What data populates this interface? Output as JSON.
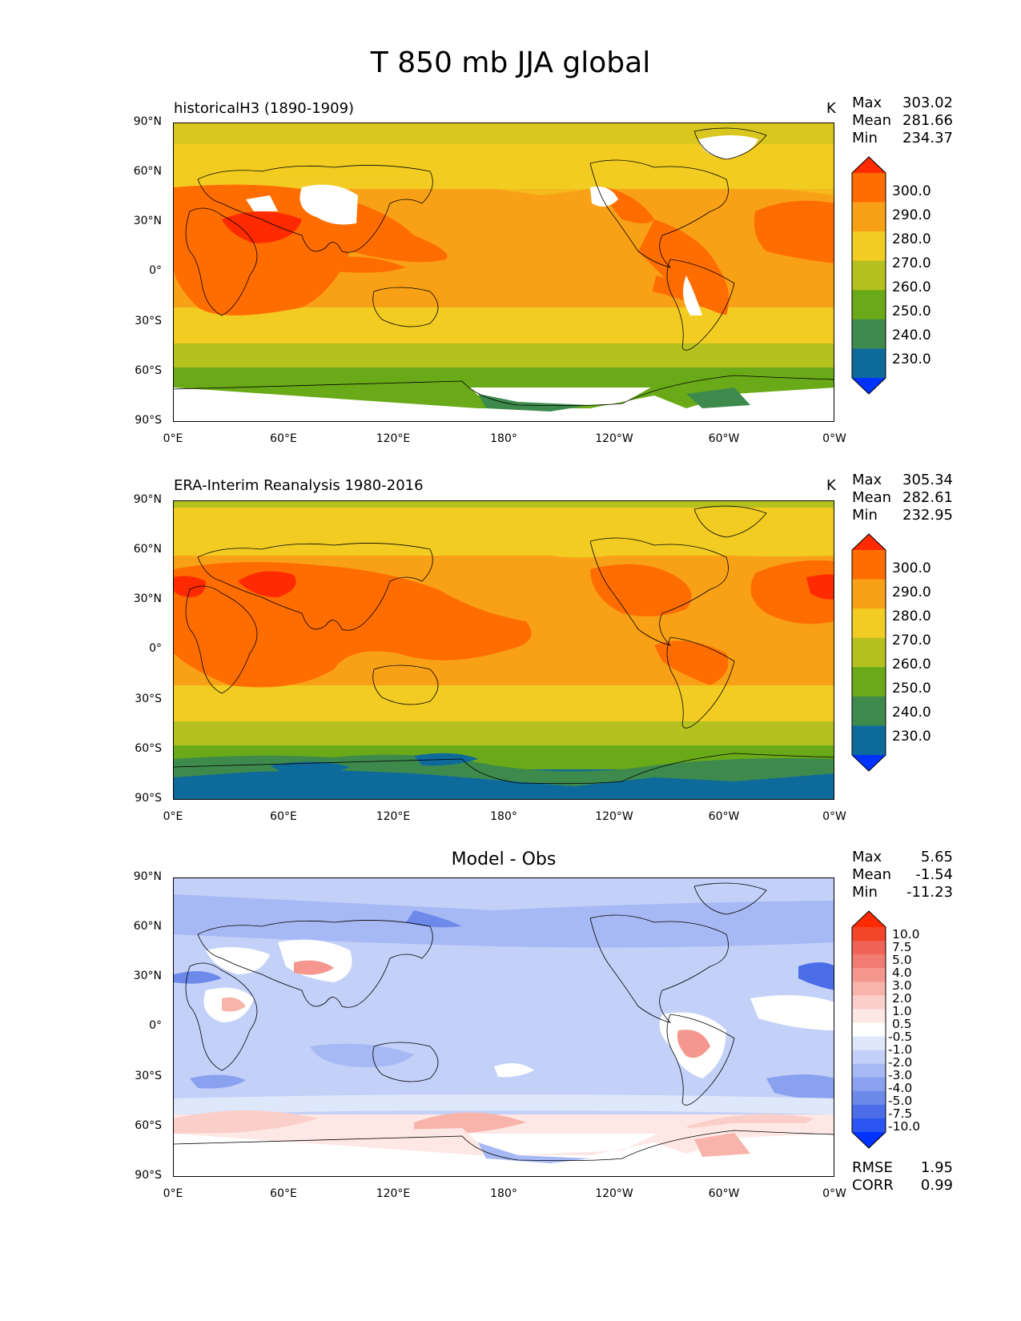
{
  "figure": {
    "title": "T 850 mb JJA global"
  },
  "axes": {
    "lat_labels": [
      "90°N",
      "60°N",
      "30°N",
      "0°",
      "30°S",
      "60°S",
      "90°S"
    ],
    "lon_labels": [
      "0°E",
      "60°E",
      "120°E",
      "180°",
      "120°W",
      "60°W",
      "0°W"
    ]
  },
  "panels": [
    {
      "title": "historicalH3 (1890-1909)",
      "units": "K",
      "stats": {
        "max_label": "Max",
        "max": "303.02",
        "mean_label": "Mean",
        "mean": "281.66",
        "min_label": "Min",
        "min": "234.37"
      },
      "colorbar": {
        "labels": [
          "300.0",
          "290.0",
          "280.0",
          "270.0",
          "260.0",
          "250.0",
          "240.0",
          "230.0"
        ],
        "colors": [
          "#ff2a00",
          "#ff6d00",
          "#f9a116",
          "#f2cc22",
          "#b5c11f",
          "#6aaa18",
          "#3d8a4c",
          "#0f6a9c",
          "#0033ff"
        ]
      }
    },
    {
      "title": "ERA-Interim Reanalysis 1980-2016",
      "units": "K",
      "stats": {
        "max_label": "Max",
        "max": "305.34",
        "mean_label": "Mean",
        "mean": "282.61",
        "min_label": "Min",
        "min": "232.95"
      },
      "colorbar": {
        "labels": [
          "300.0",
          "290.0",
          "280.0",
          "270.0",
          "260.0",
          "250.0",
          "240.0",
          "230.0"
        ],
        "colors": [
          "#ff2a00",
          "#ff6d00",
          "#f9a116",
          "#f2cc22",
          "#b5c11f",
          "#6aaa18",
          "#3d8a4c",
          "#0f6a9c",
          "#0033ff"
        ]
      }
    },
    {
      "title": "Model - Obs",
      "units": "",
      "stats": {
        "max_label": "Max",
        "max": "5.65",
        "mean_label": "Mean",
        "mean": "-1.54",
        "min_label": "Min",
        "min": "-11.23"
      },
      "metrics": {
        "rmse_label": "RMSE",
        "rmse": "1.95",
        "corr_label": "CORR",
        "corr": "0.99"
      },
      "colorbar": {
        "labels": [
          "10.0",
          "7.5",
          "5.0",
          "4.0",
          "3.0",
          "2.0",
          "1.0",
          "0.5",
          "-0.5",
          "-1.0",
          "-2.0",
          "-3.0",
          "-4.0",
          "-5.0",
          "-7.5",
          "-10.0"
        ],
        "colors": [
          "#ff2a00",
          "#f2452a",
          "#f06356",
          "#f27b72",
          "#f5978e",
          "#f8b3ab",
          "#fbcfc9",
          "#fde8e5",
          "#ffffff",
          "#dfe7fb",
          "#c3d0f8",
          "#a7b9f4",
          "#8aa1ef",
          "#6d89ea",
          "#4b6ee8",
          "#2a55f0",
          "#0033ff"
        ]
      }
    }
  ]
}
